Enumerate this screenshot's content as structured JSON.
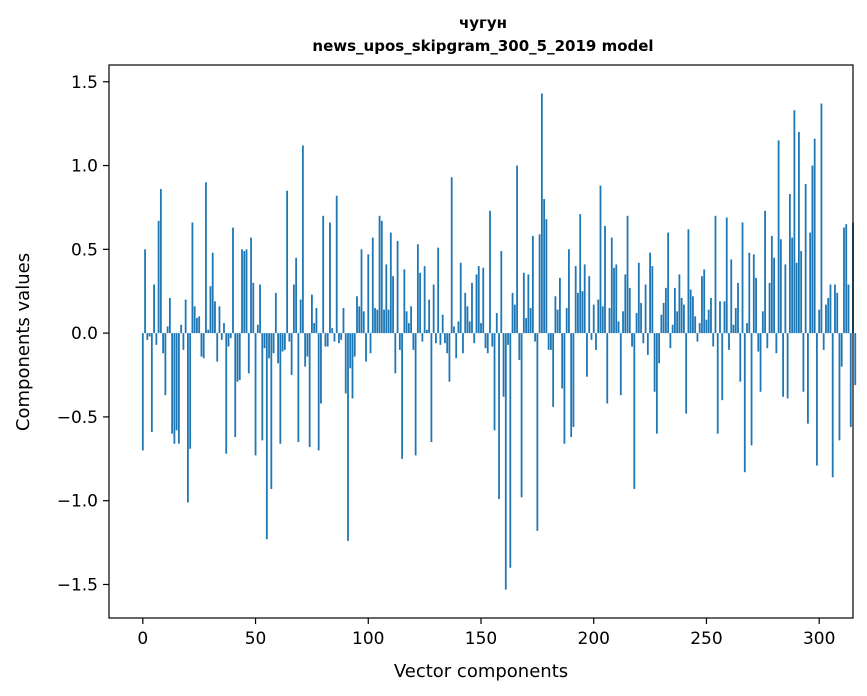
{
  "chart_data": {
    "type": "bar",
    "title_line1": "чугун",
    "title_line2": "news_upos_skipgram_300_5_2019 model",
    "xlabel": "Vector components",
    "ylabel": "Components values",
    "xlim": [
      -15,
      315
    ],
    "ylim": [
      -1.7,
      1.6
    ],
    "xticks": [
      0,
      50,
      100,
      150,
      200,
      250,
      300
    ],
    "yticks": [
      -1.5,
      -1.0,
      -0.5,
      0.0,
      0.5,
      1.0,
      1.5
    ],
    "ytick_labels": [
      "−1.5",
      "−1.0",
      "−0.5",
      "0.0",
      "0.5",
      "1.0",
      "1.5"
    ],
    "bar_color": "#1f77b4",
    "grid": false,
    "values": [
      -0.7,
      0.5,
      -0.04,
      -0.02,
      -0.59,
      0.29,
      -0.07,
      0.67,
      0.86,
      -0.12,
      -0.37,
      0.04,
      0.21,
      -0.6,
      -0.66,
      -0.58,
      -0.66,
      0.05,
      -0.1,
      0.2,
      -1.01,
      -0.69,
      0.66,
      0.16,
      0.09,
      0.1,
      -0.14,
      -0.15,
      0.9,
      0.02,
      0.28,
      0.48,
      0.19,
      -0.17,
      0.16,
      -0.04,
      0.06,
      -0.72,
      -0.08,
      -0.03,
      0.63,
      -0.62,
      -0.29,
      -0.28,
      0.5,
      0.49,
      0.5,
      -0.24,
      0.57,
      0.3,
      -0.73,
      0.05,
      0.29,
      -0.64,
      -0.09,
      -1.23,
      -0.15,
      -0.93,
      -0.12,
      0.24,
      -0.18,
      -0.66,
      -0.11,
      -0.1,
      0.85,
      -0.05,
      -0.25,
      0.29,
      0.45,
      -0.65,
      0.2,
      1.12,
      -0.2,
      -0.14,
      -0.68,
      0.23,
      0.06,
      0.15,
      -0.7,
      -0.42,
      0.7,
      -0.08,
      -0.08,
      0.66,
      0.03,
      -0.05,
      0.82,
      -0.06,
      -0.04,
      0.15,
      -0.36,
      -1.24,
      -0.21,
      -0.39,
      -0.14,
      0.22,
      0.16,
      0.5,
      0.13,
      -0.17,
      0.47,
      -0.12,
      0.57,
      0.15,
      0.14,
      0.7,
      0.67,
      0.14,
      0.41,
      0.14,
      0.6,
      0.34,
      -0.24,
      0.55,
      -0.1,
      -0.75,
      0.38,
      0.13,
      0.06,
      0.16,
      -0.1,
      -0.73,
      0.53,
      0.36,
      -0.05,
      0.4,
      0.02,
      0.2,
      -0.65,
      0.29,
      -0.06,
      0.51,
      -0.07,
      0.11,
      -0.06,
      -0.12,
      -0.29,
      0.93,
      0.04,
      -0.15,
      0.07,
      0.42,
      -0.12,
      0.24,
      0.16,
      0.07,
      0.3,
      -0.06,
      0.35,
      0.4,
      0.06,
      0.39,
      -0.09,
      -0.12,
      0.73,
      -0.08,
      -0.58,
      0.12,
      -0.99,
      0.49,
      -0.38,
      -1.53,
      -0.07,
      -1.4,
      0.24,
      0.17,
      1.0,
      -0.16,
      -0.98,
      0.36,
      0.09,
      0.35,
      0.15,
      0.58,
      -0.05,
      -1.18,
      0.59,
      1.43,
      0.8,
      0.68,
      -0.1,
      -0.1,
      -0.44,
      0.22,
      0.14,
      0.33,
      -0.33,
      -0.66,
      0.15,
      0.5,
      -0.62,
      -0.56,
      0.4,
      0.24,
      0.71,
      0.25,
      0.41,
      -0.26,
      0.34,
      -0.04,
      0.17,
      -0.1,
      0.2,
      0.88,
      0.16,
      0.64,
      -0.42,
      0.15,
      0.57,
      0.39,
      0.41,
      0.07,
      -0.37,
      0.13,
      0.35,
      0.7,
      0.27,
      -0.08,
      -0.93,
      0.12,
      0.42,
      0.18,
      -0.06,
      0.29,
      -0.13,
      0.48,
      0.4,
      -0.35,
      -0.6,
      -0.18,
      0.11,
      0.18,
      0.27,
      0.6,
      -0.09,
      0.05,
      0.27,
      0.13,
      0.35,
      0.21,
      0.17,
      -0.48,
      0.62,
      0.26,
      0.22,
      0.1,
      -0.05,
      0.06,
      0.34,
      0.38,
      0.08,
      0.14,
      0.21,
      -0.08,
      0.7,
      -0.6,
      0.19,
      -0.4,
      0.19,
      0.69,
      -0.1,
      0.44,
      0.05,
      0.15,
      0.3,
      -0.29,
      0.66,
      -0.83,
      0.06,
      0.48,
      -0.67,
      0.47,
      0.33,
      -0.11,
      -0.35,
      0.13,
      0.73,
      -0.09,
      0.3,
      0.58,
      0.45,
      -0.12,
      1.15,
      0.56,
      -0.38,
      0.41,
      -0.39,
      0.83,
      0.57,
      1.33,
      0.42,
      1.2,
      0.49,
      -0.35,
      0.89,
      -0.54,
      0.6,
      1.0,
      1.16,
      -0.79,
      0.14,
      1.37,
      -0.1,
      0.17,
      0.21,
      0.29,
      -0.86,
      0.29,
      0.24,
      -0.64,
      -0.2,
      0.63,
      0.65,
      0.29,
      -0.56,
      0.66,
      -0.31
    ]
  }
}
